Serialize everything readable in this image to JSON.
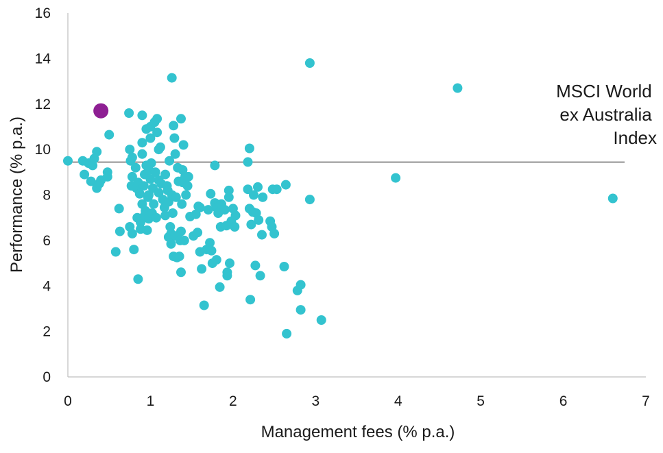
{
  "chart_data": {
    "type": "scatter",
    "title": "",
    "xlabel": "Management fees (% p.a.)",
    "ylabel": "Performance (% p.a.)",
    "xlim": [
      0,
      7
    ],
    "ylim": [
      0,
      16
    ],
    "xticks": [
      "0",
      "1",
      "2",
      "3",
      "4",
      "5",
      "6",
      "7"
    ],
    "yticks": [
      "0",
      "2",
      "4",
      "6",
      "8",
      "10",
      "12",
      "14",
      "16"
    ],
    "grid": false,
    "colors": {
      "funds": "#33c3cf",
      "highlight": "#8e1f93",
      "reference_line": "#000000",
      "axis": "#bfbfbf"
    },
    "reference_line": {
      "y": 9.45,
      "label_lines": [
        "MSCI World",
        "ex Australia",
        "Index"
      ]
    },
    "highlight_point": {
      "x": 0.4,
      "y": 11.7
    },
    "series": [
      {
        "points": [
          [
            0.0,
            9.5
          ],
          [
            0.18,
            9.5
          ],
          [
            0.2,
            8.9
          ],
          [
            0.25,
            9.4
          ],
          [
            0.28,
            8.6
          ],
          [
            0.3,
            9.3
          ],
          [
            0.32,
            9.6
          ],
          [
            0.35,
            9.9
          ],
          [
            0.35,
            8.3
          ],
          [
            0.38,
            8.5
          ],
          [
            0.4,
            8.65
          ],
          [
            0.48,
            9.0
          ],
          [
            0.48,
            8.8
          ],
          [
            0.5,
            10.65
          ],
          [
            0.58,
            5.5
          ],
          [
            0.62,
            7.4
          ],
          [
            0.63,
            6.4
          ],
          [
            0.74,
            11.6
          ],
          [
            0.75,
            10.0
          ],
          [
            0.75,
            6.6
          ],
          [
            0.76,
            9.5
          ],
          [
            0.77,
            8.4
          ],
          [
            0.78,
            9.65
          ],
          [
            0.78,
            8.8
          ],
          [
            0.78,
            6.3
          ],
          [
            0.8,
            5.6
          ],
          [
            0.82,
            9.2
          ],
          [
            0.83,
            8.3
          ],
          [
            0.84,
            7.0
          ],
          [
            0.85,
            8.55
          ],
          [
            0.85,
            4.3
          ],
          [
            0.87,
            8.05
          ],
          [
            0.88,
            6.8
          ],
          [
            0.88,
            6.5
          ],
          [
            0.9,
            11.5
          ],
          [
            0.9,
            9.8
          ],
          [
            0.9,
            7.6
          ],
          [
            0.9,
            10.3
          ],
          [
            0.92,
            8.4
          ],
          [
            0.93,
            7.1
          ],
          [
            0.93,
            8.9
          ],
          [
            0.94,
            7.3
          ],
          [
            0.95,
            9.3
          ],
          [
            0.95,
            10.9
          ],
          [
            0.96,
            6.45
          ],
          [
            0.97,
            7.9
          ],
          [
            0.98,
            9.1
          ],
          [
            0.98,
            8.0
          ],
          [
            0.98,
            6.95
          ],
          [
            1.0,
            11.0
          ],
          [
            1.0,
            10.5
          ],
          [
            1.0,
            8.7
          ],
          [
            1.01,
            9.4
          ],
          [
            1.02,
            7.2
          ],
          [
            1.03,
            8.3
          ],
          [
            1.04,
            7.6
          ],
          [
            1.05,
            11.2
          ],
          [
            1.06,
            9.0
          ],
          [
            1.07,
            7.0
          ],
          [
            1.08,
            11.35
          ],
          [
            1.08,
            10.75
          ],
          [
            1.1,
            8.1
          ],
          [
            1.1,
            10.0
          ],
          [
            1.1,
            8.65
          ],
          [
            1.12,
            10.1
          ],
          [
            1.13,
            8.5
          ],
          [
            1.15,
            7.8
          ],
          [
            1.17,
            7.45
          ],
          [
            1.18,
            8.9
          ],
          [
            1.18,
            7.1
          ],
          [
            1.2,
            8.4
          ],
          [
            1.21,
            8.2
          ],
          [
            1.22,
            6.15
          ],
          [
            1.22,
            7.7
          ],
          [
            1.23,
            9.5
          ],
          [
            1.24,
            6.6
          ],
          [
            1.25,
            5.85
          ],
          [
            1.25,
            6.3
          ],
          [
            1.26,
            8.0
          ],
          [
            1.26,
            13.15
          ],
          [
            1.27,
            7.2
          ],
          [
            1.28,
            11.05
          ],
          [
            1.28,
            5.3
          ],
          [
            1.29,
            10.5
          ],
          [
            1.3,
            9.8
          ],
          [
            1.3,
            6.2
          ],
          [
            1.31,
            7.9
          ],
          [
            1.32,
            5.25
          ],
          [
            1.33,
            9.2
          ],
          [
            1.34,
            8.6
          ],
          [
            1.35,
            5.3
          ],
          [
            1.36,
            6.0
          ],
          [
            1.37,
            11.35
          ],
          [
            1.37,
            6.4
          ],
          [
            1.37,
            4.6
          ],
          [
            1.38,
            7.6
          ],
          [
            1.39,
            9.1
          ],
          [
            1.39,
            8.55
          ],
          [
            1.4,
            10.2
          ],
          [
            1.41,
            6.0
          ],
          [
            1.42,
            8.8
          ],
          [
            1.43,
            8.0
          ],
          [
            1.45,
            8.4
          ],
          [
            1.46,
            8.8
          ],
          [
            1.48,
            7.05
          ],
          [
            1.52,
            6.2
          ],
          [
            1.55,
            7.15
          ],
          [
            1.57,
            6.35
          ],
          [
            1.58,
            7.5
          ],
          [
            1.6,
            5.5
          ],
          [
            1.6,
            7.45
          ],
          [
            1.62,
            4.75
          ],
          [
            1.65,
            3.15
          ],
          [
            1.68,
            5.6
          ],
          [
            1.7,
            7.35
          ],
          [
            1.72,
            5.9
          ],
          [
            1.73,
            8.05
          ],
          [
            1.74,
            5.55
          ],
          [
            1.75,
            5.0
          ],
          [
            1.78,
            7.65
          ],
          [
            1.78,
            9.3
          ],
          [
            1.8,
            5.15
          ],
          [
            1.8,
            7.45
          ],
          [
            1.82,
            7.2
          ],
          [
            1.84,
            3.95
          ],
          [
            1.85,
            6.6
          ],
          [
            1.86,
            7.6
          ],
          [
            1.9,
            7.35
          ],
          [
            1.92,
            6.65
          ],
          [
            1.93,
            4.45
          ],
          [
            1.93,
            4.6
          ],
          [
            1.95,
            8.2
          ],
          [
            1.95,
            7.9
          ],
          [
            1.96,
            5.0
          ],
          [
            1.98,
            6.85
          ],
          [
            2.0,
            7.4
          ],
          [
            2.02,
            6.6
          ],
          [
            2.03,
            7.1
          ],
          [
            2.18,
            8.25
          ],
          [
            2.18,
            9.45
          ],
          [
            2.2,
            10.05
          ],
          [
            2.2,
            7.4
          ],
          [
            2.21,
            3.4
          ],
          [
            2.22,
            6.7
          ],
          [
            2.24,
            7.25
          ],
          [
            2.25,
            8.0
          ],
          [
            2.27,
            4.9
          ],
          [
            2.28,
            7.2
          ],
          [
            2.3,
            8.35
          ],
          [
            2.31,
            6.9
          ],
          [
            2.33,
            4.45
          ],
          [
            2.35,
            6.25
          ],
          [
            2.36,
            7.9
          ],
          [
            2.45,
            6.85
          ],
          [
            2.47,
            6.6
          ],
          [
            2.48,
            8.25
          ],
          [
            2.5,
            6.3
          ],
          [
            2.53,
            8.25
          ],
          [
            2.62,
            4.85
          ],
          [
            2.64,
            8.45
          ],
          [
            2.65,
            1.9
          ],
          [
            2.78,
            3.8
          ],
          [
            2.82,
            4.05
          ],
          [
            2.82,
            2.95
          ],
          [
            2.93,
            13.8
          ],
          [
            2.93,
            7.8
          ],
          [
            3.07,
            2.5
          ],
          [
            3.97,
            8.75
          ],
          [
            4.72,
            12.7
          ],
          [
            6.6,
            7.85
          ]
        ]
      }
    ]
  }
}
